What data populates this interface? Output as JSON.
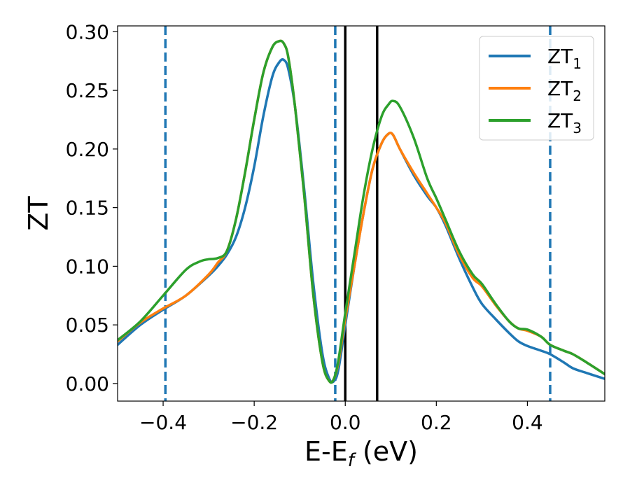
{
  "chart_data": {
    "type": "line",
    "title": "",
    "xlabel": "E-E_f (eV)",
    "xlabel_parts": {
      "main": "E-E",
      "sub": "f",
      "rest": " (eV)"
    },
    "ylabel": "ZT",
    "xlim": [
      -0.5,
      0.57
    ],
    "ylim": [
      -0.015,
      0.305
    ],
    "x_ticks": [
      -0.4,
      -0.2,
      0.0,
      0.2,
      0.4
    ],
    "x_tick_labels": [
      "−0.4",
      "−0.2",
      "0.0",
      "0.2",
      "0.4"
    ],
    "y_ticks": [
      0.0,
      0.05,
      0.1,
      0.15,
      0.2,
      0.25,
      0.3
    ],
    "y_tick_labels": [
      "0.00",
      "0.05",
      "0.10",
      "0.15",
      "0.20",
      "0.25",
      "0.30"
    ],
    "grid": false,
    "legend_position": "top-right",
    "vlines": [
      {
        "x": -0.395,
        "style": "dashed",
        "color": "#1f77b4"
      },
      {
        "x": -0.022,
        "style": "dashed",
        "color": "#1f77b4"
      },
      {
        "x": 0.0,
        "style": "solid",
        "color": "#000000"
      },
      {
        "x": 0.07,
        "style": "solid",
        "color": "#000000"
      },
      {
        "x": 0.45,
        "style": "dashed",
        "color": "#1f77b4"
      }
    ],
    "series": [
      {
        "name": "ZT_1",
        "label_main": "ZT",
        "label_sub": "1",
        "color": "#1f77b4",
        "x": [
          -0.5,
          -0.45,
          -0.4,
          -0.35,
          -0.3,
          -0.28,
          -0.26,
          -0.24,
          -0.22,
          -0.2,
          -0.18,
          -0.16,
          -0.145,
          -0.135,
          -0.125,
          -0.11,
          -0.09,
          -0.07,
          -0.05,
          -0.035,
          -0.025,
          -0.015,
          0.0,
          0.02,
          0.04,
          0.06,
          0.08,
          0.095,
          0.105,
          0.12,
          0.15,
          0.18,
          0.2,
          0.22,
          0.25,
          0.28,
          0.3,
          0.33,
          0.36,
          0.38,
          0.4,
          0.43,
          0.45,
          0.48,
          0.5,
          0.53,
          0.57
        ],
        "y": [
          0.033,
          0.05,
          0.063,
          0.075,
          0.092,
          0.1,
          0.11,
          0.125,
          0.15,
          0.185,
          0.228,
          0.262,
          0.274,
          0.276,
          0.268,
          0.235,
          0.165,
          0.085,
          0.025,
          0.004,
          0.002,
          0.012,
          0.05,
          0.1,
          0.145,
          0.183,
          0.205,
          0.213,
          0.212,
          0.2,
          0.178,
          0.16,
          0.15,
          0.135,
          0.107,
          0.082,
          0.068,
          0.055,
          0.043,
          0.036,
          0.032,
          0.028,
          0.025,
          0.018,
          0.013,
          0.009,
          0.004
        ]
      },
      {
        "name": "ZT_2",
        "label_main": "ZT",
        "label_sub": "2",
        "color": "#ff7f0e",
        "x": [
          -0.5,
          -0.45,
          -0.4,
          -0.35,
          -0.3,
          -0.28,
          -0.26,
          -0.24,
          -0.22,
          -0.2,
          -0.18,
          -0.16,
          -0.145,
          -0.135,
          -0.125,
          -0.11,
          -0.09,
          -0.07,
          -0.05,
          -0.035,
          -0.025,
          -0.015,
          0.0,
          0.02,
          0.04,
          0.06,
          0.08,
          0.095,
          0.105,
          0.12,
          0.15,
          0.18,
          0.2,
          0.22,
          0.25,
          0.28,
          0.3,
          0.33,
          0.36,
          0.38,
          0.4,
          0.43,
          0.45,
          0.48,
          0.5,
          0.53,
          0.57
        ],
        "y": [
          0.036,
          0.052,
          0.064,
          0.075,
          0.093,
          0.103,
          0.113,
          0.14,
          0.18,
          0.225,
          0.265,
          0.287,
          0.292,
          0.29,
          0.278,
          0.235,
          0.16,
          0.075,
          0.018,
          0.002,
          0.004,
          0.018,
          0.055,
          0.1,
          0.145,
          0.183,
          0.205,
          0.213,
          0.212,
          0.2,
          0.18,
          0.162,
          0.15,
          0.137,
          0.11,
          0.09,
          0.083,
          0.067,
          0.053,
          0.047,
          0.045,
          0.04,
          0.033,
          0.028,
          0.025,
          0.018,
          0.008
        ]
      },
      {
        "name": "ZT_3",
        "label_main": "ZT",
        "label_sub": "3",
        "color": "#2ca02c",
        "x": [
          -0.5,
          -0.45,
          -0.4,
          -0.35,
          -0.32,
          -0.3,
          -0.28,
          -0.26,
          -0.24,
          -0.22,
          -0.2,
          -0.18,
          -0.16,
          -0.145,
          -0.135,
          -0.125,
          -0.11,
          -0.09,
          -0.07,
          -0.05,
          -0.035,
          -0.025,
          -0.015,
          0.0,
          0.02,
          0.04,
          0.06,
          0.08,
          0.095,
          0.105,
          0.12,
          0.15,
          0.18,
          0.2,
          0.22,
          0.25,
          0.28,
          0.3,
          0.33,
          0.36,
          0.38,
          0.4,
          0.43,
          0.45,
          0.48,
          0.5,
          0.53,
          0.57
        ],
        "y": [
          0.037,
          0.053,
          0.075,
          0.097,
          0.104,
          0.106,
          0.107,
          0.113,
          0.14,
          0.18,
          0.225,
          0.265,
          0.287,
          0.292,
          0.29,
          0.278,
          0.235,
          0.16,
          0.075,
          0.018,
          0.002,
          0.004,
          0.02,
          0.06,
          0.11,
          0.16,
          0.2,
          0.228,
          0.238,
          0.241,
          0.236,
          0.21,
          0.175,
          0.158,
          0.14,
          0.113,
          0.093,
          0.085,
          0.068,
          0.053,
          0.047,
          0.046,
          0.04,
          0.033,
          0.028,
          0.025,
          0.018,
          0.008
        ]
      }
    ]
  }
}
